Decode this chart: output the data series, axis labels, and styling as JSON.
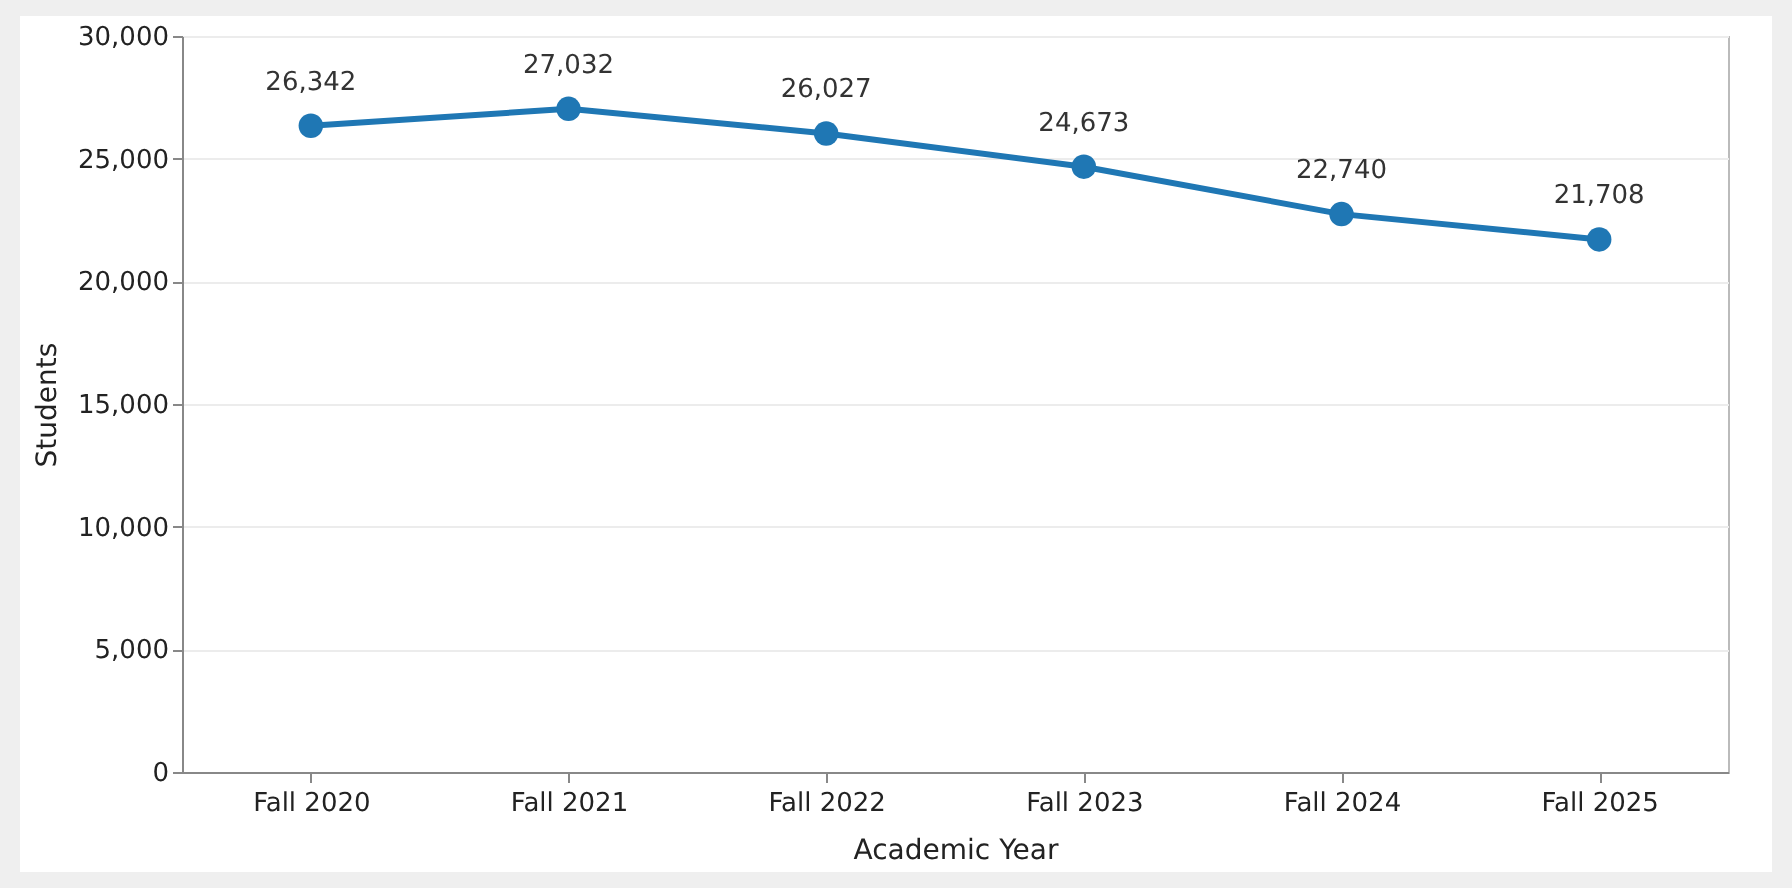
{
  "chart_data": {
    "type": "line",
    "xlabel": "Academic Year",
    "ylabel": "Students",
    "categories": [
      "Fall 2020",
      "Fall 2021",
      "Fall 2022",
      "Fall 2023",
      "Fall 2024",
      "Fall 2025"
    ],
    "series": [
      {
        "color": "#1f77b4",
        "values": [
          26342,
          27032,
          26027,
          24673,
          22740,
          21708
        ],
        "value_labels": [
          "26,342",
          "27,032",
          "26,027",
          "24,673",
          "22,740",
          "21,708"
        ]
      }
    ],
    "ylim": [
      0,
      30000
    ],
    "yticks": [
      {
        "value": 0,
        "label": "0"
      },
      {
        "value": 5000,
        "label": "5,000"
      },
      {
        "value": 10000,
        "label": "10,000"
      },
      {
        "value": 15000,
        "label": "15,000"
      },
      {
        "value": 20000,
        "label": "20,000"
      },
      {
        "value": 25000,
        "label": "25,000"
      },
      {
        "value": 30000,
        "label": "30,000"
      }
    ],
    "grid": "y",
    "marker": "circle",
    "line_style": "solid"
  }
}
